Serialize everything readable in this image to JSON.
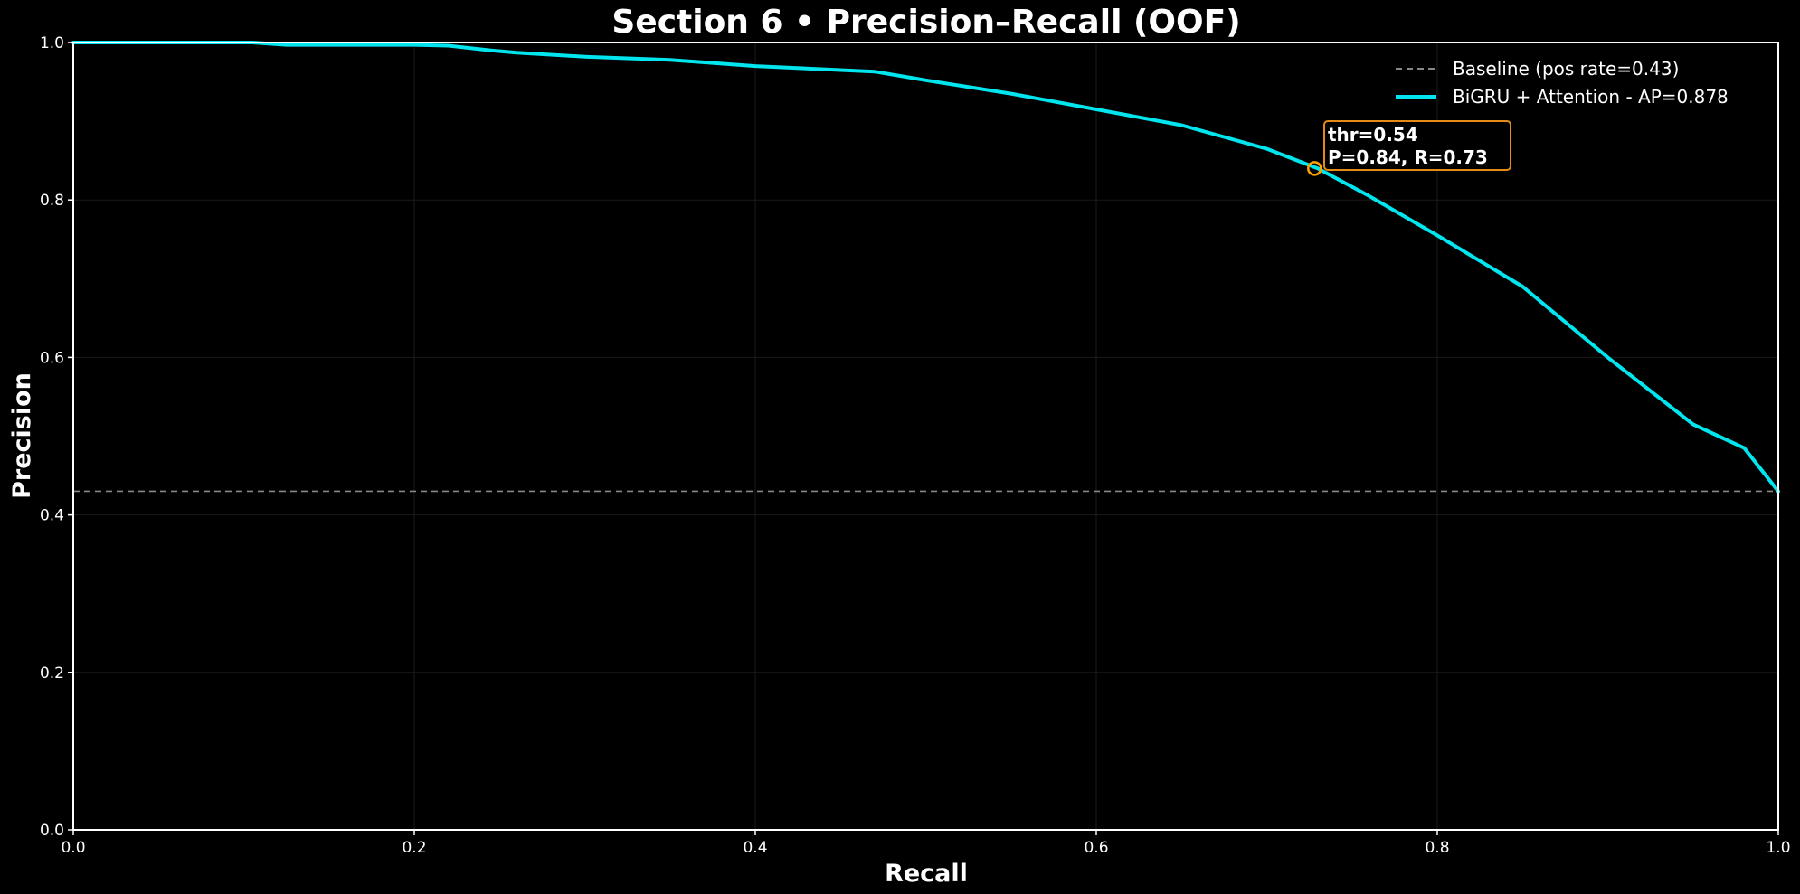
{
  "chart_data": {
    "type": "line",
    "title": "Section 6 • Precision–Recall (OOF)",
    "xlabel": "Recall",
    "ylabel": "Precision",
    "xlim": [
      0,
      1
    ],
    "ylim": [
      0,
      1
    ],
    "xticks": [
      "0.0",
      "0.2",
      "0.4",
      "0.6",
      "0.8",
      "1.0"
    ],
    "yticks": [
      "0.0",
      "0.2",
      "0.4",
      "0.6",
      "0.8",
      "1.0"
    ],
    "grid": true,
    "legend_position": "top-right",
    "baseline": {
      "name": "Baseline (pos rate=0.43)",
      "y": 0.43,
      "color": "#888888"
    },
    "series": [
      {
        "name": "BiGRU + Attention - AP=0.878",
        "color": "#00E5EE",
        "x": [
          0.0,
          0.05,
          0.105,
          0.125,
          0.2,
          0.22,
          0.245,
          0.26,
          0.3,
          0.35,
          0.4,
          0.45,
          0.47,
          0.5,
          0.55,
          0.6,
          0.65,
          0.7,
          0.73,
          0.76,
          0.8,
          0.85,
          0.9,
          0.95,
          0.98,
          1.0
        ],
        "y": [
          1.0,
          1.0,
          1.0,
          0.997,
          0.997,
          0.996,
          0.99,
          0.987,
          0.982,
          0.978,
          0.97,
          0.965,
          0.963,
          0.952,
          0.935,
          0.915,
          0.895,
          0.865,
          0.84,
          0.805,
          0.755,
          0.69,
          0.6,
          0.515,
          0.485,
          0.43
        ]
      }
    ],
    "annotation": {
      "text_line1": "thr=0.54",
      "text_line2": "P=0.84, R=0.73",
      "x": 0.728,
      "y": 0.84,
      "marker_color": "#FFA500"
    }
  }
}
